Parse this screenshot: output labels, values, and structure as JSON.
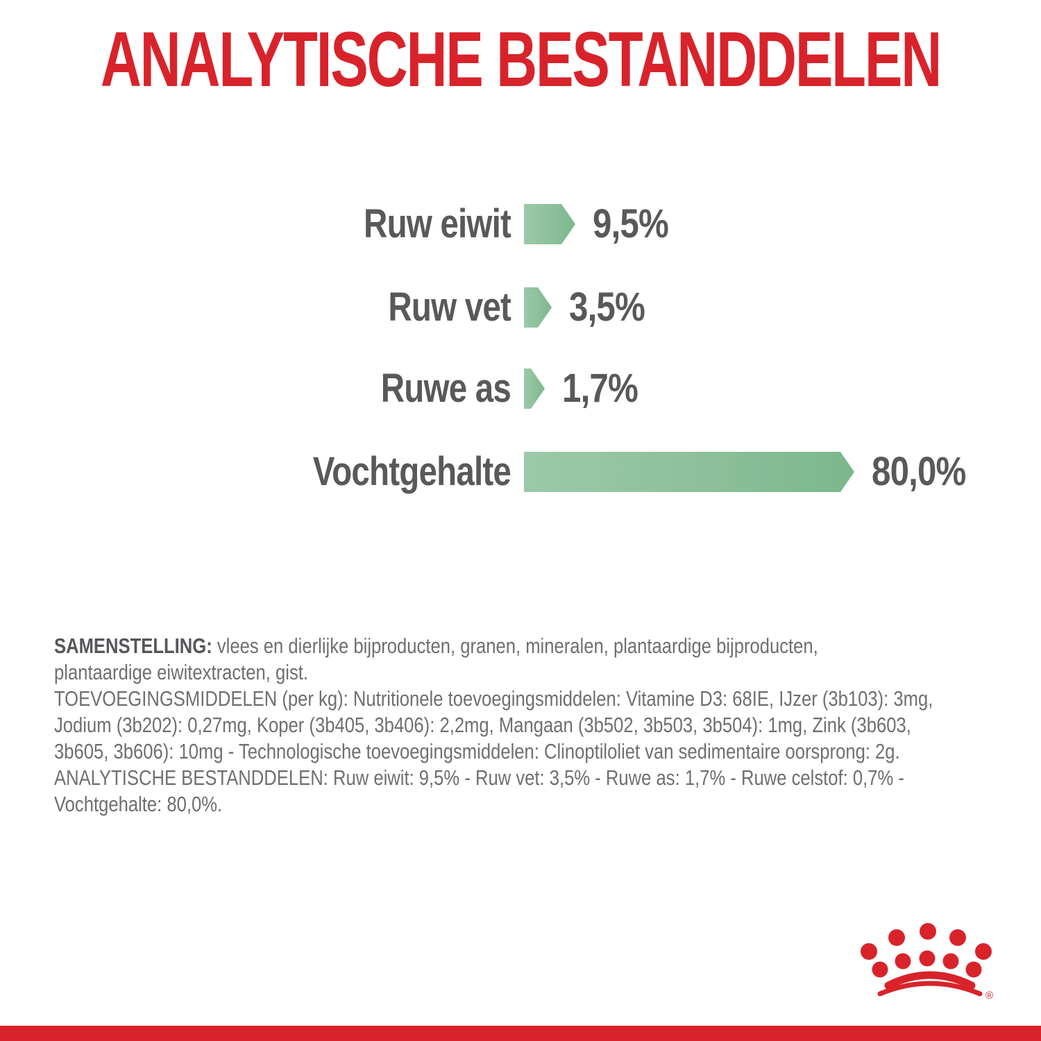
{
  "page": {
    "title": "ANALYTISCHE BESTANDDELEN"
  },
  "chart_data": {
    "type": "bar",
    "orientation": "horizontal",
    "title": "ANALYTISCHE BESTANDDELEN",
    "unit": "%",
    "xlim": [
      0,
      100
    ],
    "grid": false,
    "legend": "none",
    "categories": [
      "Ruw eiwit",
      "Ruw vet",
      "Ruwe as",
      "Vochtgehalte"
    ],
    "values": [
      9.5,
      3.5,
      1.7,
      80.0
    ],
    "rows": [
      {
        "label": "Ruw eiwit",
        "value": 9.5,
        "display": "9,5%"
      },
      {
        "label": "Ruw vet",
        "value": 3.5,
        "display": "3,5%"
      },
      {
        "label": "Ruwe as",
        "value": 1.7,
        "display": "1,7%"
      },
      {
        "label": "Vochtgehalte",
        "value": 80.0,
        "display": "80,0%"
      }
    ]
  },
  "composition": {
    "heading": "SAMENSTELLING:",
    "heading_rest": "vlees en dierlijke bijproducten, granen, mineralen, plantaardige bijproducten,",
    "lines": [
      "plantaardige eiwitextracten, gist.",
      "TOEVOEGINGSMIDDELEN (per kg): Nutritionele toevoegingsmiddelen: Vitamine D3: 68IE, IJzer (3b103): 3mg,",
      "Jodium (3b202): 0,27mg, Koper (3b405, 3b406): 2,2mg, Mangaan (3b502, 3b503, 3b504): 1mg, Zink (3b603,",
      "3b605, 3b606): 10mg - Technologische toevoegingsmiddelen: Clinoptiloliet van sedimentaire oorsprong: 2g.",
      "ANALYTISCHE BESTANDDELEN: Ruw eiwit: 9,5% - Ruw vet: 3,5% - Ruwe as: 1,7% - Ruwe celstof: 0,7% -",
      "Vochtgehalte: 80,0%."
    ]
  },
  "footer": {
    "logo_icon": "royal-canin-crown-icon",
    "registered_mark": "®"
  },
  "colors": {
    "brand_red": "#D8232B",
    "chart_text_gray": "#58595B",
    "body_text_gray": "#6E6F72",
    "bar_green_light": "#9CC9A8",
    "bar_green_dark": "#7BB78D"
  }
}
